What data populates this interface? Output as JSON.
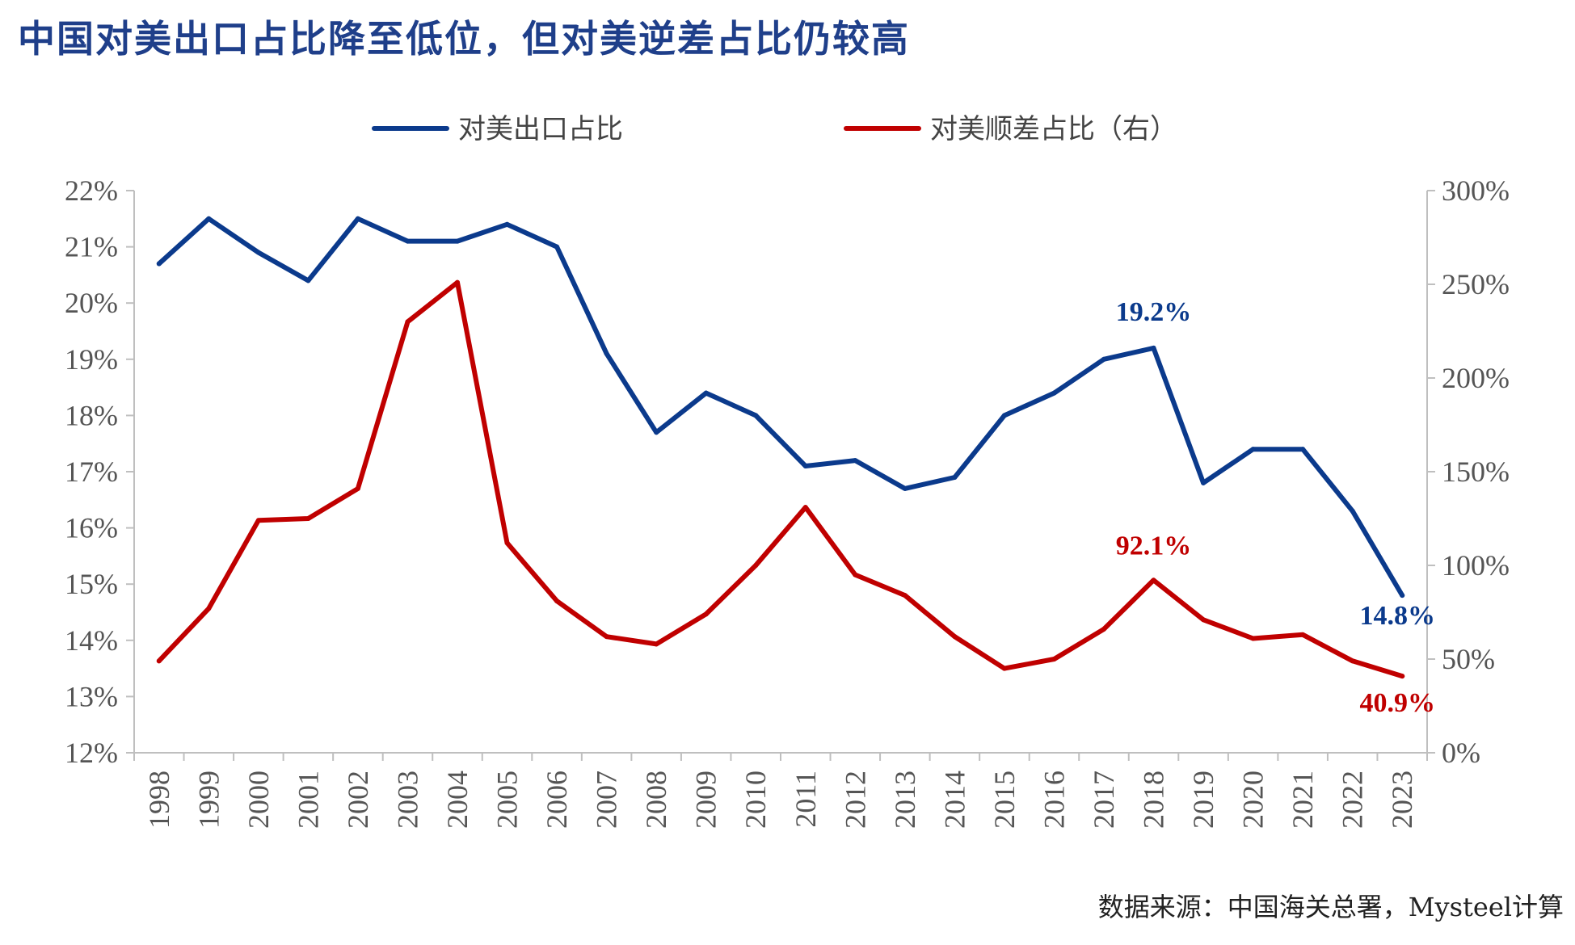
{
  "title": "中国对美出口占比降至低位，但对美逆差占比仍较高",
  "source": "数据来源：中国海关总署，Mysteel计算",
  "chart_data": {
    "type": "line",
    "categories": [
      "1998",
      "1999",
      "2000",
      "2001",
      "2002",
      "2003",
      "2004",
      "2005",
      "2006",
      "2007",
      "2008",
      "2009",
      "2010",
      "2011",
      "2012",
      "2013",
      "2014",
      "2015",
      "2016",
      "2017",
      "2018",
      "2019",
      "2020",
      "2021",
      "2022",
      "2023"
    ],
    "left_axis": {
      "ylim": [
        12,
        22
      ],
      "ticks": [
        "12%",
        "13%",
        "14%",
        "15%",
        "16%",
        "17%",
        "18%",
        "19%",
        "20%",
        "21%",
        "22%"
      ]
    },
    "right_axis": {
      "ylim": [
        0,
        300
      ],
      "ticks": [
        "0%",
        "50%",
        "100%",
        "150%",
        "200%",
        "250%",
        "300%"
      ]
    },
    "series": [
      {
        "name": "对美出口占比",
        "axis": "left",
        "color": "#0b3a8c",
        "values": [
          20.7,
          21.5,
          20.9,
          20.4,
          21.5,
          21.1,
          21.1,
          21.4,
          21.0,
          19.1,
          17.7,
          18.4,
          18.0,
          17.1,
          17.2,
          16.7,
          16.9,
          18.0,
          18.4,
          19.0,
          19.2,
          16.8,
          17.4,
          17.4,
          16.3,
          14.8
        ]
      },
      {
        "name": "对美顺差占比（右）",
        "axis": "right",
        "color": "#c00000",
        "values": [
          49,
          77,
          124,
          125,
          141,
          230,
          251,
          112,
          81,
          62,
          58,
          74,
          100,
          131,
          95,
          84,
          62,
          45,
          50,
          66,
          92.1,
          71,
          61,
          63,
          49,
          40.9
        ]
      }
    ],
    "annotations": [
      {
        "series": 0,
        "index": 20,
        "text": "19.2%",
        "color": "#0b3a8c"
      },
      {
        "series": 0,
        "index": 25,
        "text": "14.8%",
        "color": "#0b3a8c"
      },
      {
        "series": 1,
        "index": 20,
        "text": "92.1%",
        "color": "#c00000"
      },
      {
        "series": 1,
        "index": 25,
        "text": "40.9%",
        "color": "#c00000"
      }
    ]
  }
}
